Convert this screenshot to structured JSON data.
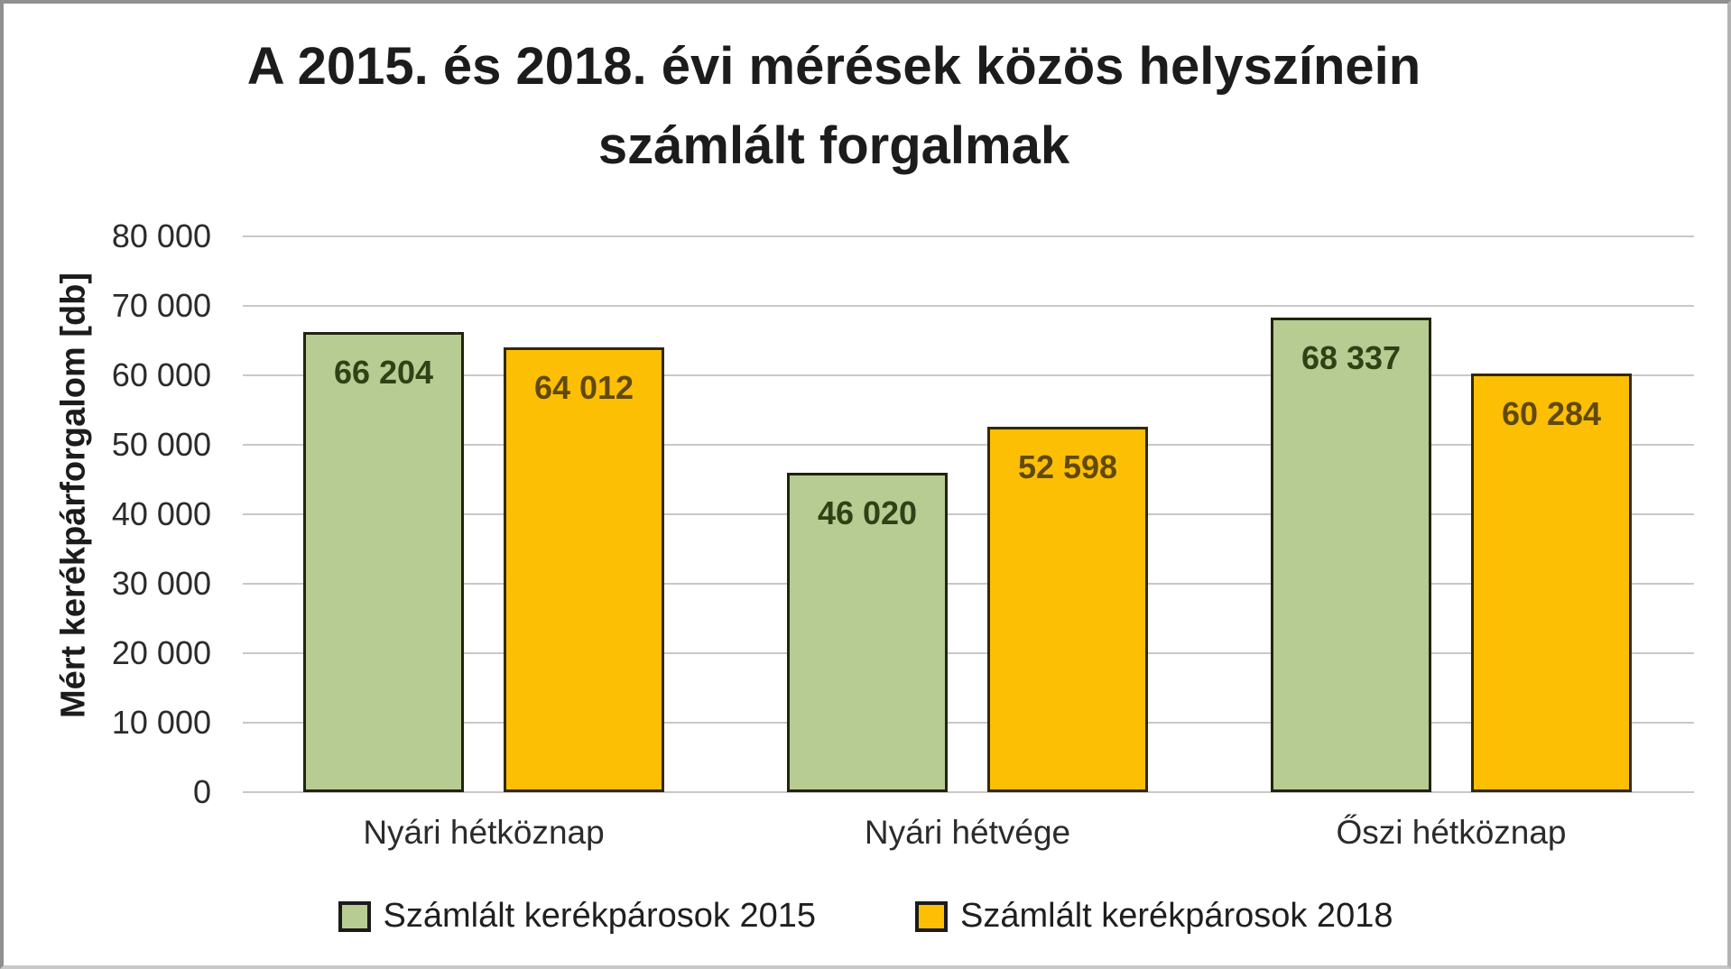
{
  "frame": {
    "background": "#ffffff",
    "border_color": "#9a9a9a"
  },
  "chart_data": {
    "type": "bar",
    "title": "A 2015. és 2018. évi mérések közös helyszínein számlált forgalmak",
    "title_lines": [
      "A 2015. és 2018. évi mérések közös helyszínein",
      "számlált forgalmak"
    ],
    "ylabel": "Mért kerékpárforgalom [db]",
    "xlabel": "",
    "categories": [
      "Nyári hétköznap",
      "Nyári hétvége",
      "Őszi hétköznap"
    ],
    "series": [
      {
        "name": "Számlált kerékpárosok 2015",
        "values": [
          66204,
          46020,
          68337
        ],
        "value_labels": [
          "66 204",
          "46 020",
          "68 337"
        ],
        "fill": "#b7cc92",
        "border": "#20240f",
        "label_color": "#2f4216"
      },
      {
        "name": "Számlált kerékpárosok 2018",
        "values": [
          64012,
          52598,
          60284
        ],
        "value_labels": [
          "64 012",
          "52 598",
          "60 284"
        ],
        "fill": "#fcbf04",
        "border": "#332800",
        "label_color": "#61490a"
      }
    ],
    "ylim": [
      0,
      80000
    ],
    "ytick_interval": 10000,
    "ytick_labels": [
      "0",
      "10 000",
      "20 000",
      "30 000",
      "40 000",
      "50 000",
      "60 000",
      "70 000",
      "80 000"
    ],
    "grid": true,
    "gridline_color": "#c8c8c8",
    "legend_position": "bottom"
  }
}
